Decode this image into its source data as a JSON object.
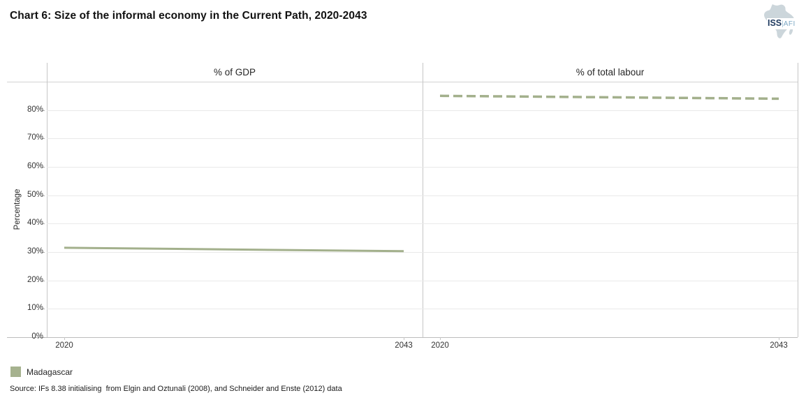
{
  "header": {
    "title": "Chart 6: Size of the informal economy in the Current Path, 2020-2043"
  },
  "logo": {
    "org": "ISS",
    "divider": "|",
    "sub": "AFI"
  },
  "legend": {
    "items": [
      {
        "label": "Madagascar",
        "color": "#a6b28f"
      }
    ]
  },
  "source": "Source: IFs 8.38 initialising  from Elgin and Oztunali (2008), and Schneider and Enste (2012) data",
  "chart_data": {
    "type": "line",
    "title": "Chart 6: Size of the informal economy in the Current Path, 2020-2043",
    "ylabel": "Percentage",
    "ylim": [
      0,
      90
    ],
    "grid": true,
    "line_color": "#a3b08c",
    "legend_position": "bottom-left",
    "yticks": [
      "0%",
      "10%",
      "20%",
      "30%",
      "40%",
      "50%",
      "60%",
      "70%",
      "80%"
    ],
    "panels": [
      {
        "title": "% of GDP",
        "x": [
          2020,
          2043
        ],
        "xticklabels": [
          "2020",
          "2043"
        ],
        "series": [
          {
            "name": "Madagascar",
            "style": "solid",
            "values": [
              31.5,
              30.3
            ]
          }
        ]
      },
      {
        "title": "% of total labour",
        "x": [
          2020,
          2043
        ],
        "xticklabels": [
          "2020",
          "2043"
        ],
        "series": [
          {
            "name": "Madagascar",
            "style": "dashed",
            "values": [
              85.0,
              84.0
            ]
          }
        ]
      }
    ]
  }
}
